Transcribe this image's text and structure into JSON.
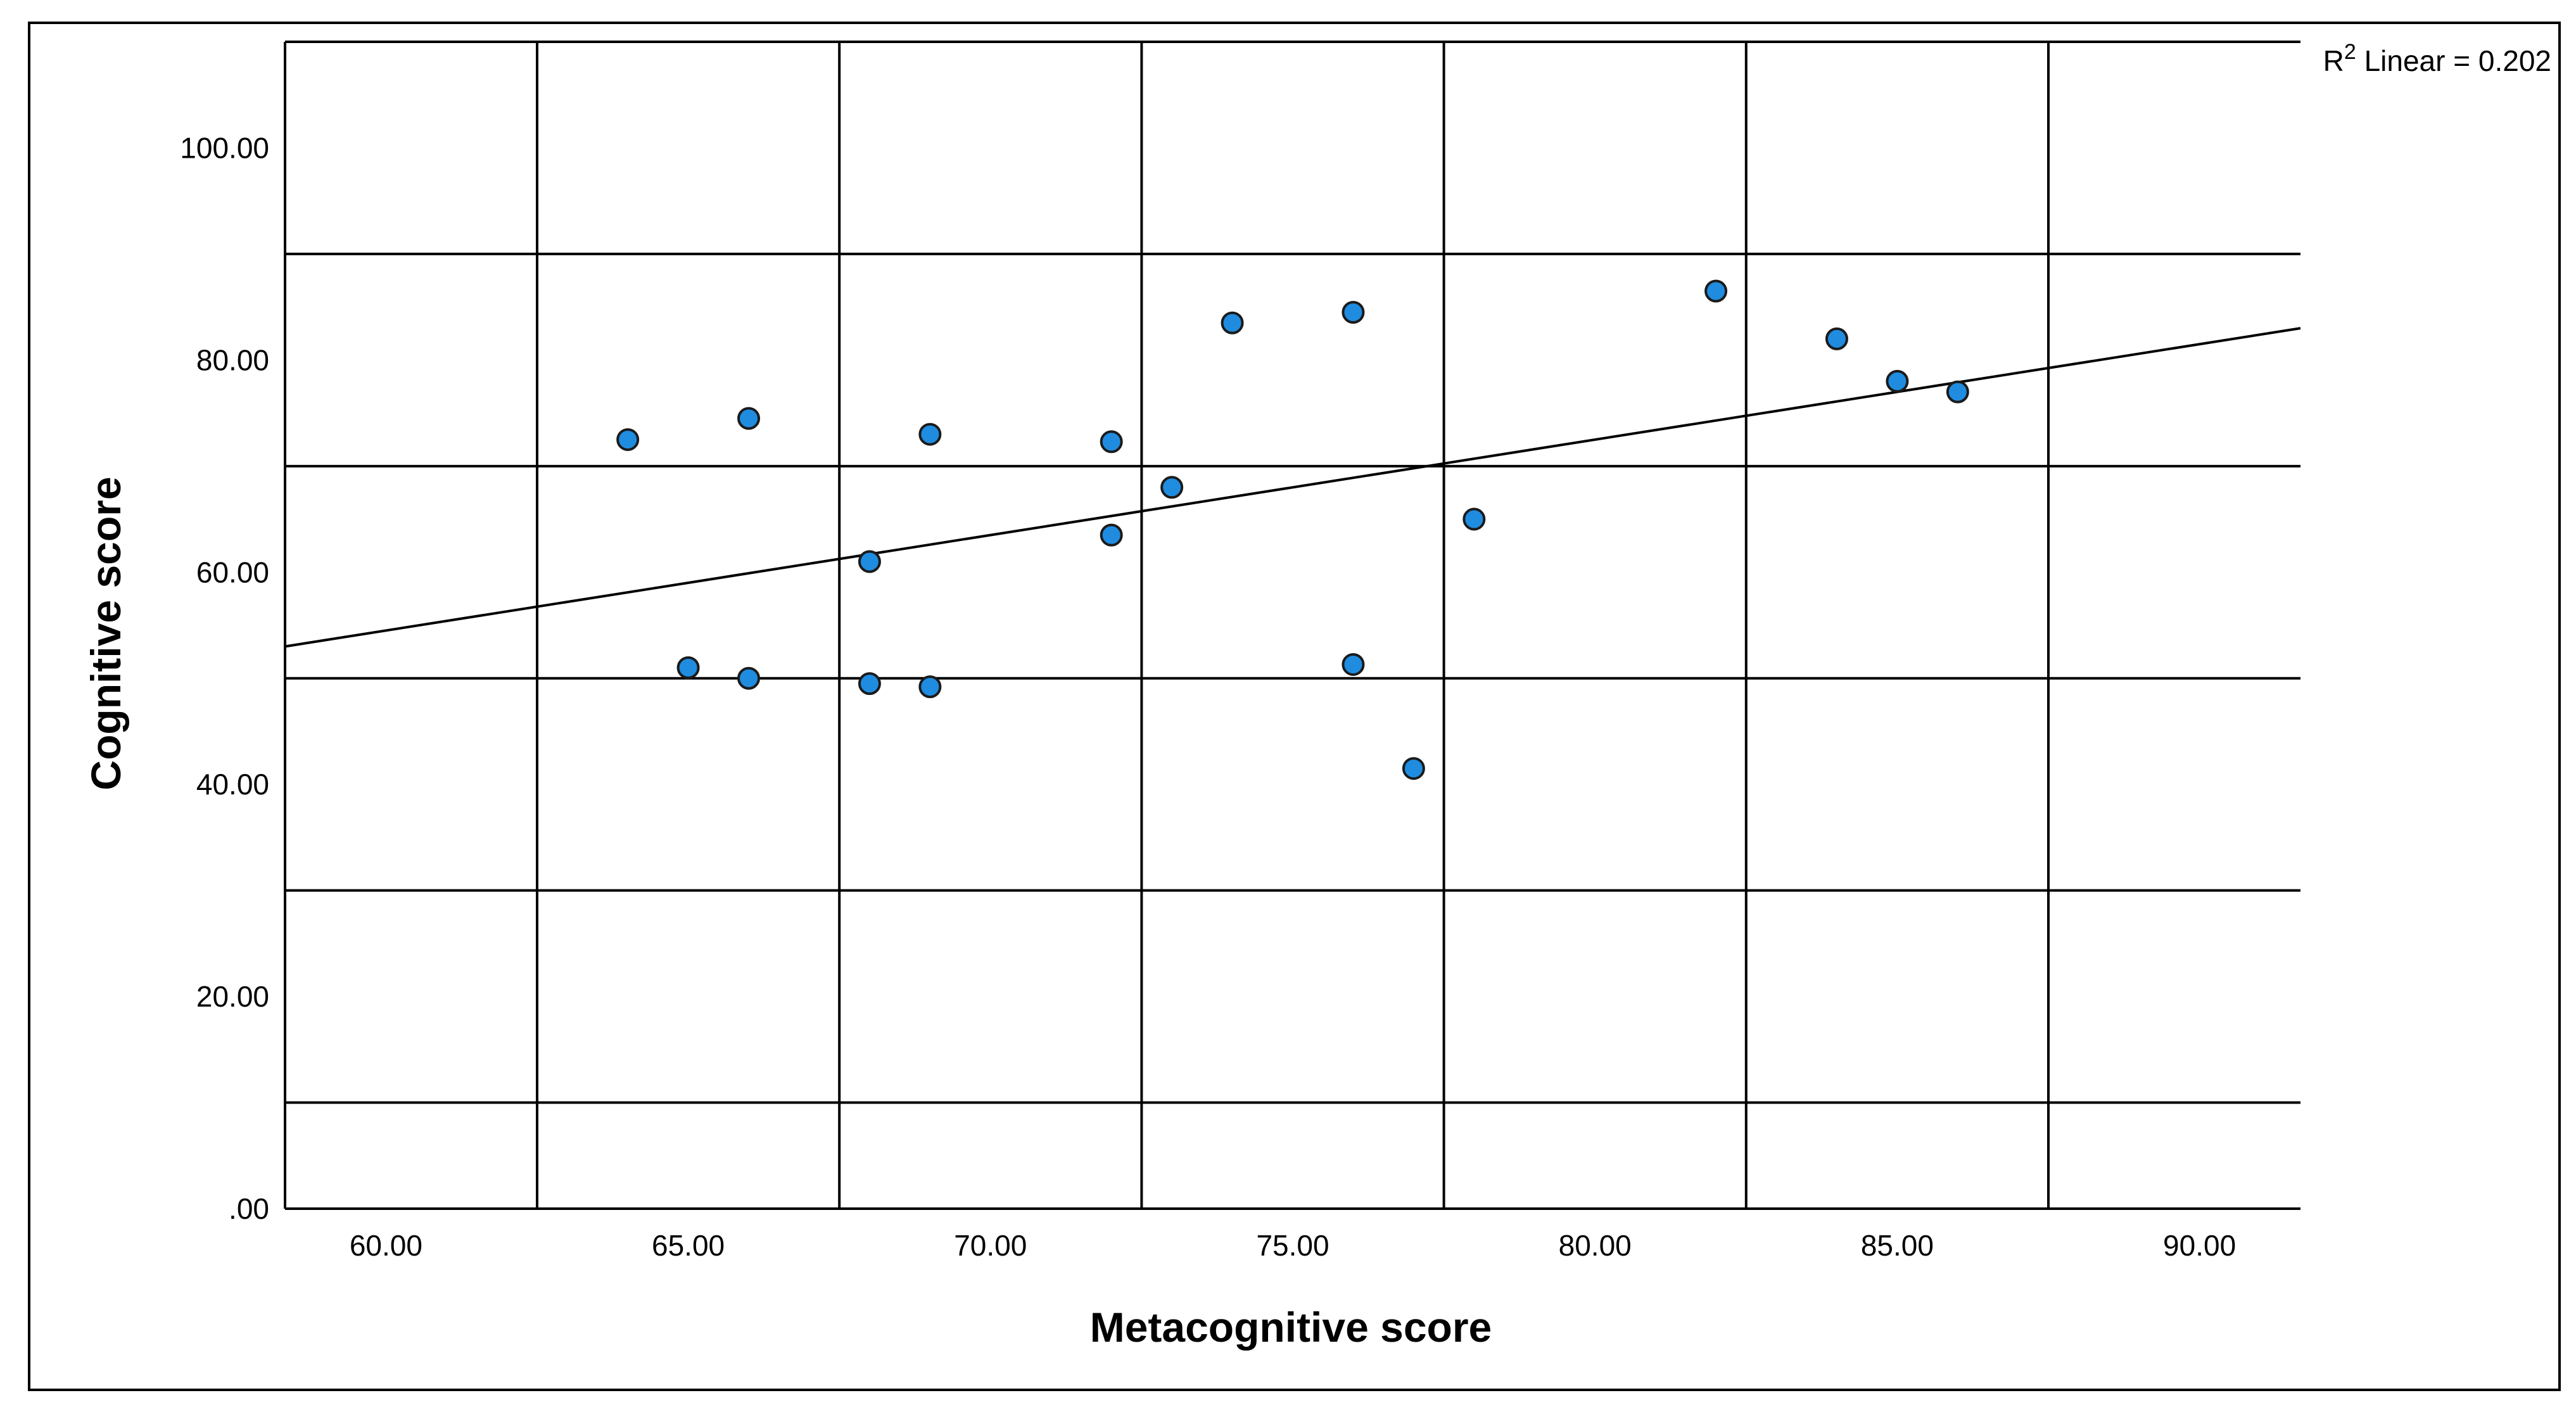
{
  "chart_data": {
    "type": "scatter",
    "xlabel": "Metacognitive score",
    "ylabel": "Cognitive score",
    "xlim": [
      58.33,
      91.67
    ],
    "ylim": [
      0,
      110
    ],
    "x_ticks": [
      60,
      65,
      70,
      75,
      80,
      85,
      90
    ],
    "x_tick_labels": [
      "60.00",
      "65.00",
      "70.00",
      "75.00",
      "80.00",
      "85.00",
      "90.00"
    ],
    "y_ticks": [
      0,
      20,
      40,
      60,
      80,
      100
    ],
    "y_tick_labels": [
      ".00",
      "20.00",
      "40.00",
      "60.00",
      "80.00",
      "100.00"
    ],
    "x_gridlines": [
      62.5,
      67.5,
      72.5,
      77.5,
      82.5,
      87.5
    ],
    "y_gridlines": [
      10,
      30,
      50,
      70,
      90,
      110
    ],
    "grid": true,
    "points": [
      {
        "x": 64,
        "y": 72.5
      },
      {
        "x": 65,
        "y": 51
      },
      {
        "x": 66,
        "y": 74.5
      },
      {
        "x": 66,
        "y": 50
      },
      {
        "x": 68,
        "y": 61
      },
      {
        "x": 68,
        "y": 49.5
      },
      {
        "x": 69,
        "y": 73
      },
      {
        "x": 69,
        "y": 49.2
      },
      {
        "x": 72,
        "y": 72.3
      },
      {
        "x": 72,
        "y": 63.5
      },
      {
        "x": 73,
        "y": 68
      },
      {
        "x": 74,
        "y": 83.5
      },
      {
        "x": 76,
        "y": 84.5
      },
      {
        "x": 76,
        "y": 51.3
      },
      {
        "x": 77,
        "y": 41.5
      },
      {
        "x": 78,
        "y": 65
      },
      {
        "x": 82,
        "y": 86.5
      },
      {
        "x": 84,
        "y": 82
      },
      {
        "x": 85,
        "y": 78
      },
      {
        "x": 86,
        "y": 77
      }
    ],
    "point_color": "#1f8ce0",
    "fit_line": {
      "type": "linear",
      "start": {
        "x": 58.33,
        "y": 53
      },
      "end": {
        "x": 91.67,
        "y": 83
      },
      "label_prefix": "R",
      "label_superscript": "2",
      "label_suffix": " Linear = 0.202"
    }
  }
}
